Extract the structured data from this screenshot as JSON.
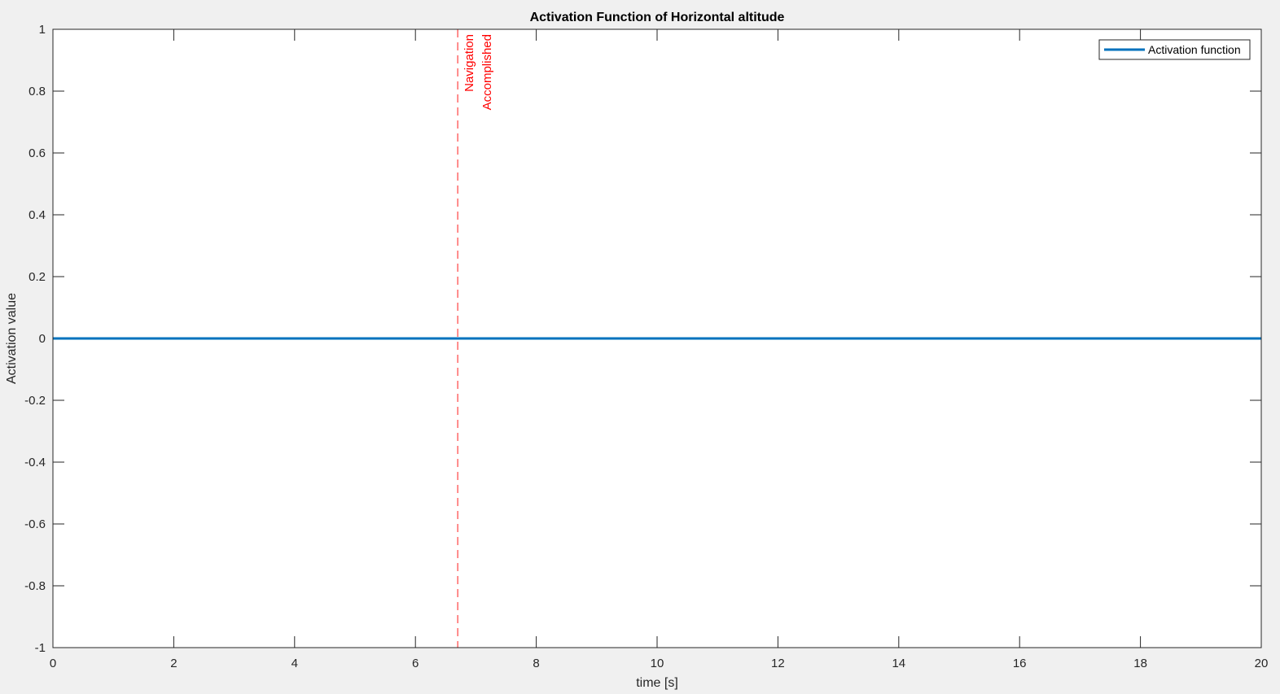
{
  "chart_data": {
    "type": "line",
    "title": "Activation Function of Horizontal altitude",
    "xlabel": "time [s]",
    "ylabel": "Activation value",
    "xlim": [
      0,
      20
    ],
    "ylim": [
      -1,
      1
    ],
    "xticks": [
      0,
      2,
      4,
      6,
      8,
      10,
      12,
      14,
      16,
      18,
      20
    ],
    "xtick_labels": [
      "0",
      "2",
      "4",
      "6",
      "8",
      "10",
      "12",
      "14",
      "16",
      "18",
      "20"
    ],
    "yticks": [
      -1,
      -0.8,
      -0.6,
      -0.4,
      -0.2,
      0,
      0.2,
      0.4,
      0.6,
      0.8,
      1
    ],
    "ytick_labels": [
      "-1",
      "-0.8",
      "-0.6",
      "-0.4",
      "-0.2",
      "0",
      "0.2",
      "0.4",
      "0.6",
      "0.8",
      "1"
    ],
    "grid": false,
    "legend_position": "top-right",
    "series": [
      {
        "name": "Activation function",
        "color": "#0072bd",
        "x": [
          0,
          20
        ],
        "y": [
          0,
          0
        ]
      }
    ],
    "annotations": [
      {
        "type": "vertical-line",
        "style": "dashed",
        "x": 6.7,
        "color": "#ff0000",
        "label_lines": [
          "Navigation",
          "Accomplished"
        ]
      }
    ]
  }
}
